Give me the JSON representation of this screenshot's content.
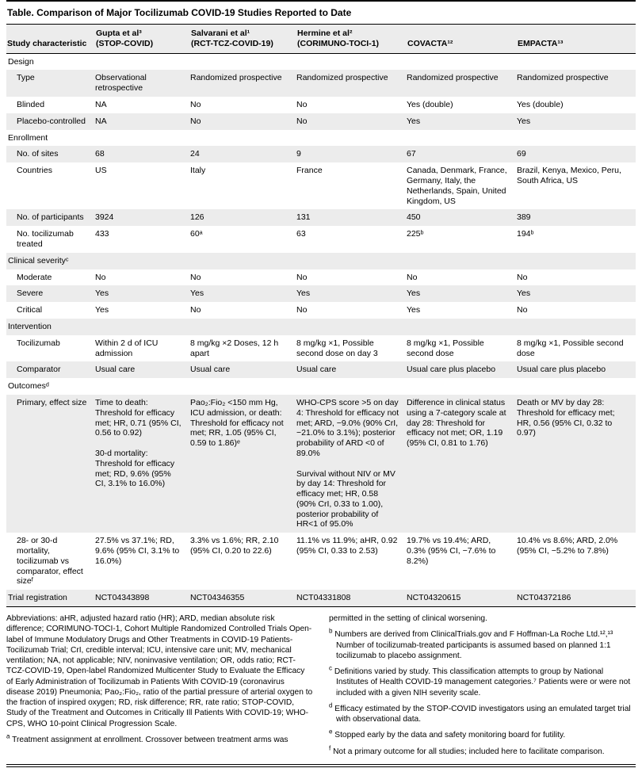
{
  "meta": {
    "title": "Table. Comparison of Major Tocilizumab COVID-19 Studies Reported to Date"
  },
  "table": {
    "header": [
      "Study characteristic",
      "Gupta et al³\n(STOP-COVID)",
      "Salvarani et al¹\n(RCT-TCZ-COVID-19)",
      "Hermine et al²\n(CORIMUNO-TOCI-1)",
      "COVACTA¹²",
      "EMPACTA¹³"
    ],
    "rows": [
      {
        "kind": "section",
        "label": "Design"
      },
      {
        "kind": "item",
        "label": "Type",
        "cells": [
          "Observational retrospective",
          "Randomized prospective",
          "Randomized prospective",
          "Randomized prospective",
          "Randomized prospective"
        ]
      },
      {
        "kind": "item",
        "label": "Blinded",
        "cells": [
          "NA",
          "No",
          "No",
          "Yes (double)",
          "Yes (double)"
        ]
      },
      {
        "kind": "item",
        "label": "Placebo-controlled",
        "cells": [
          "NA",
          "No",
          "No",
          "Yes",
          "Yes"
        ]
      },
      {
        "kind": "section",
        "label": "Enrollment"
      },
      {
        "kind": "item",
        "label": "No. of sites",
        "cells": [
          "68",
          "24",
          "9",
          "67",
          "69"
        ]
      },
      {
        "kind": "item",
        "label": "Countries",
        "cells": [
          "US",
          "Italy",
          "France",
          "Canada, Denmark, France, Germany, Italy, the Netherlands, Spain, United Kingdom, US",
          "Brazil, Kenya, Mexico, Peru, South Africa, US"
        ]
      },
      {
        "kind": "item",
        "label": "No. of participants",
        "cells": [
          "3924",
          "126",
          "131",
          "450",
          "389"
        ]
      },
      {
        "kind": "item",
        "label": "No. tocilizumab treated",
        "cells": [
          "433",
          "60ᵃ",
          "63",
          "225ᵇ",
          "194ᵇ"
        ]
      },
      {
        "kind": "section",
        "label": "Clinical severityᶜ"
      },
      {
        "kind": "item",
        "label": "Moderate",
        "cells": [
          "No",
          "No",
          "No",
          "No",
          "No"
        ]
      },
      {
        "kind": "item",
        "label": "Severe",
        "cells": [
          "Yes",
          "Yes",
          "Yes",
          "Yes",
          "Yes"
        ]
      },
      {
        "kind": "item",
        "label": "Critical",
        "cells": [
          "Yes",
          "No",
          "No",
          "Yes",
          "No"
        ]
      },
      {
        "kind": "section",
        "label": "Intervention"
      },
      {
        "kind": "item",
        "label": "Tocilizumab",
        "cells": [
          "Within 2 d of ICU admission",
          "8 mg/kg ×2 Doses, 12 h apart",
          "8 mg/kg ×1, Possible second dose on day 3",
          "8 mg/kg ×1, Possible second dose",
          "8 mg/kg ×1, Possible second dose"
        ]
      },
      {
        "kind": "item",
        "label": "Comparator",
        "cells": [
          "Usual care",
          "Usual care",
          "Usual care",
          "Usual care plus placebo",
          "Usual care plus placebo"
        ]
      },
      {
        "kind": "section",
        "label": "Outcomesᵈ"
      },
      {
        "kind": "item",
        "label": "Primary, effect size",
        "cells": [
          "Time to death: Threshold for efficacy met; HR, 0.71 (95% CI, 0.56 to 0.92)\n\n30-d mortality: Threshold for efficacy met; RD, 9.6% (95% CI, 3.1% to 16.0%)",
          "Pao₂:Fio₂ <150 mm Hg, ICU admission, or death: Threshold for efficacy not met; RR, 1.05 (95% CI, 0.59 to 1.86)ᵉ",
          "WHO-CPS score >5 on day 4: Threshold for efficacy not met; ARD, −9.0% (90% CrI, −21.0% to 3.1%); posterior probability of ARD <0 of 89.0%\n\nSurvival without NIV or MV by day 14: Threshold for efficacy met; HR, 0.58 (90% CrI, 0.33 to 1.00), posterior probability of HR<1 of 95.0%",
          "Difference in clinical status using a 7-category scale at day 28: Threshold for efficacy not met; OR, 1.19 (95% CI, 0.81 to 1.76)",
          "Death or MV by day 28: Threshold for efficacy met; HR, 0.56 (95% CI, 0.32 to 0.97)"
        ]
      },
      {
        "kind": "item",
        "label": "28- or 30-d mortality, tocilizumab vs comparator, effect sizeᶠ",
        "cells": [
          "27.5% vs 37.1%; RD, 9.6% (95% CI, 3.1% to 16.0%)",
          "3.3% vs 1.6%; RR, 2.10 (95% CI, 0.20 to 22.6)",
          "11.1% vs 11.9%; aHR, 0.92 (95% CI, 0.33 to 2.53)",
          "19.7% vs 19.4%; ARD, 0.3% (95% CI, −7.6% to 8.2%)",
          "10.4% vs 8.6%; ARD, 2.0% (95% CI, −5.2% to 7.8%)"
        ]
      },
      {
        "kind": "flat",
        "label": "Trial registration",
        "cells": [
          "NCT04343898",
          "NCT04346355",
          "NCT04331808",
          "NCT04320615",
          "NCT04372186"
        ]
      }
    ]
  },
  "footnotes": {
    "left": [
      {
        "marker": "",
        "text": "Abbreviations: aHR, adjusted hazard ratio (HR); ARD, median absolute risk difference; CORIMUNO-TOCI-1, Cohort Multiple Randomized Controlled Trials Open-label of Immune Modulatory Drugs and Other Treatments in COVID-19 Patients-Tocilizumab Trial; CrI, credible interval; ICU, intensive care unit; MV, mechanical ventilation; NA, not applicable; NIV, noninvasive ventilation; OR, odds ratio; RCT-TCZ-COVID-19, Open-label Randomized Multicenter Study to Evaluate the Efficacy of Early Administration of Tocilizumab in Patients With COVID-19 (coronavirus disease 2019) Pneumonia; Pao₂:Fio₂, ratio of the partial pressure of arterial oxygen to the fraction of inspired oxygen; RD, risk difference; RR, rate ratio; STOP-COVID, Study of the Treatment and Outcomes in Critically Ill Patients With COVID-19; WHO-CPS, WHO 10-point Clinical Progression Scale."
      },
      {
        "marker": "a",
        "text": "Treatment assignment at enrollment. Crossover between treatment arms was"
      }
    ],
    "right": [
      {
        "marker": "",
        "text": "permitted in the setting of clinical worsening."
      },
      {
        "marker": "b",
        "text": "Numbers are derived from ClinicalTrials.gov and F Hoffman-La Roche Ltd.¹²,¹³ Number of tocilizumab-treated participants is assumed based on planned 1:1 tocilizumab to placebo assignment."
      },
      {
        "marker": "c",
        "text": "Definitions varied by study. This classification attempts to group by National Institutes of Health COVID-19 management categories.⁷ Patients were or were not included with a given NIH severity scale."
      },
      {
        "marker": "d",
        "text": "Efficacy estimated by the STOP-COVID investigators using an emulated target trial with observational data."
      },
      {
        "marker": "e",
        "text": "Stopped early by the data and safety monitoring board for futility."
      },
      {
        "marker": "f",
        "text": "Not a primary outcome for all studies; included here to facilitate comparison."
      }
    ]
  }
}
